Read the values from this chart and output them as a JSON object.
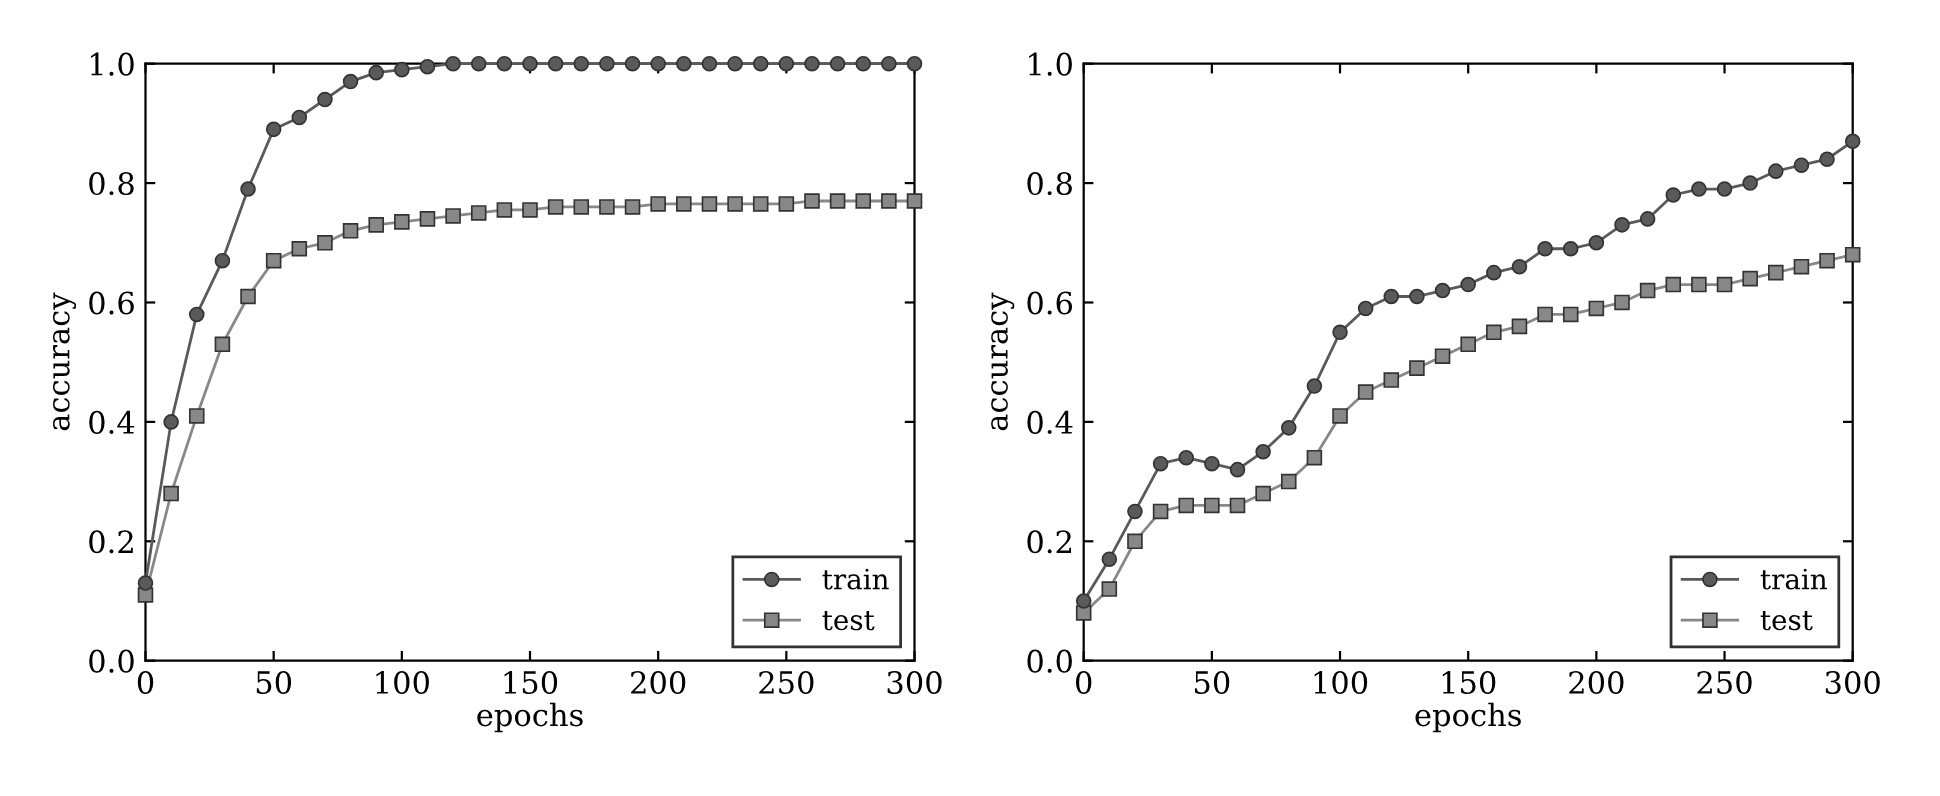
{
  "chart_data": [
    {
      "type": "line",
      "xlabel": "epochs",
      "ylabel": "accuracy",
      "x": [
        0,
        10,
        20,
        30,
        40,
        50,
        60,
        70,
        80,
        90,
        100,
        110,
        120,
        130,
        140,
        150,
        160,
        170,
        180,
        190,
        200,
        210,
        220,
        230,
        240,
        250,
        260,
        270,
        280,
        290,
        300
      ],
      "xlim": [
        0,
        300
      ],
      "ylim": [
        0.0,
        1.0
      ],
      "xticks": [
        0,
        50,
        100,
        150,
        200,
        250,
        300
      ],
      "yticks": [
        {
          "value": 0,
          "label": "0.0"
        },
        {
          "value": 0.2,
          "label": "0.2"
        },
        {
          "value": 0.4,
          "label": "0.4"
        },
        {
          "value": 0.6,
          "label": "0.6"
        },
        {
          "value": 0.8,
          "label": "0.8"
        },
        {
          "value": 1,
          "label": "1.0"
        }
      ],
      "legend": "bottom right",
      "grid": false,
      "series": [
        {
          "name": "train",
          "color": "#5a5a5a",
          "marker": "circle",
          "values": [
            0.13,
            0.4,
            0.58,
            0.67,
            0.79,
            0.89,
            0.91,
            0.94,
            0.97,
            0.985,
            0.99,
            0.995,
            1.0,
            1.0,
            1.0,
            1.0,
            1.0,
            1.0,
            1.0,
            1.0,
            1.0,
            1.0,
            1.0,
            1.0,
            1.0,
            1.0,
            1.0,
            1.0,
            1.0,
            1.0,
            1.0
          ]
        },
        {
          "name": "test",
          "color": "#888888",
          "marker": "square",
          "values": [
            0.11,
            0.28,
            0.41,
            0.53,
            0.61,
            0.67,
            0.69,
            0.7,
            0.72,
            0.73,
            0.735,
            0.74,
            0.745,
            0.75,
            0.755,
            0.755,
            0.76,
            0.76,
            0.76,
            0.76,
            0.765,
            0.765,
            0.765,
            0.765,
            0.765,
            0.765,
            0.77,
            0.77,
            0.77,
            0.77,
            0.77
          ]
        }
      ]
    },
    {
      "type": "line",
      "xlabel": "epochs",
      "ylabel": "accuracy",
      "x": [
        0,
        10,
        20,
        30,
        40,
        50,
        60,
        70,
        80,
        90,
        100,
        110,
        120,
        130,
        140,
        150,
        160,
        170,
        180,
        190,
        200,
        210,
        220,
        230,
        240,
        250,
        260,
        270,
        280,
        290,
        300
      ],
      "xlim": [
        0,
        300
      ],
      "ylim": [
        0.0,
        1.0
      ],
      "xticks": [
        0,
        50,
        100,
        150,
        200,
        250,
        300
      ],
      "yticks": [
        {
          "value": 0,
          "label": "0.0"
        },
        {
          "value": 0.2,
          "label": "0.2"
        },
        {
          "value": 0.4,
          "label": "0.4"
        },
        {
          "value": 0.6,
          "label": "0.6"
        },
        {
          "value": 0.8,
          "label": "0.8"
        },
        {
          "value": 1,
          "label": "1.0"
        }
      ],
      "legend": "bottom right",
      "grid": false,
      "series": [
        {
          "name": "train",
          "color": "#5a5a5a",
          "marker": "circle",
          "values": [
            0.1,
            0.17,
            0.25,
            0.33,
            0.34,
            0.33,
            0.32,
            0.35,
            0.39,
            0.46,
            0.55,
            0.59,
            0.61,
            0.61,
            0.62,
            0.63,
            0.65,
            0.66,
            0.69,
            0.69,
            0.7,
            0.73,
            0.74,
            0.78,
            0.79,
            0.79,
            0.8,
            0.82,
            0.83,
            0.84,
            0.87
          ]
        },
        {
          "name": "test",
          "color": "#888888",
          "marker": "square",
          "values": [
            0.08,
            0.12,
            0.2,
            0.25,
            0.26,
            0.26,
            0.26,
            0.28,
            0.3,
            0.34,
            0.41,
            0.45,
            0.47,
            0.49,
            0.51,
            0.53,
            0.55,
            0.56,
            0.58,
            0.58,
            0.59,
            0.6,
            0.62,
            0.63,
            0.63,
            0.63,
            0.64,
            0.65,
            0.66,
            0.67,
            0.68
          ]
        }
      ]
    }
  ]
}
